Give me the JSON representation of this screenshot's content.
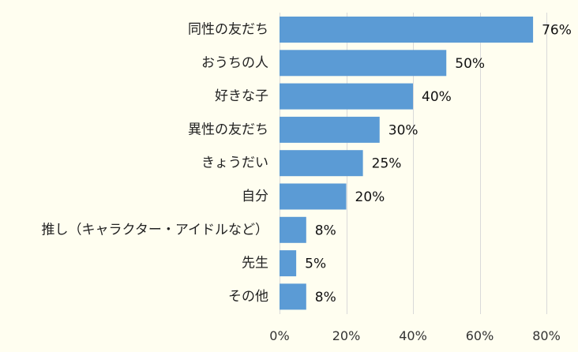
{
  "chart_data": {
    "type": "bar",
    "orientation": "horizontal",
    "categories": [
      "同性の友だち",
      "おうちの人",
      "好きな子",
      "異性の友だち",
      "きょうだい",
      "自分",
      "推し（キャラクター・アイドルなど）",
      "先生",
      "その他"
    ],
    "values": [
      76,
      50,
      40,
      30,
      25,
      20,
      8,
      5,
      8
    ],
    "value_labels": [
      "76%",
      "50%",
      "40%",
      "30%",
      "25%",
      "20%",
      "8%",
      "5%",
      "8%"
    ],
    "x_ticks": [
      0,
      20,
      40,
      60,
      80
    ],
    "x_tick_labels": [
      "0%",
      "20%",
      "40%",
      "60%",
      "80%"
    ],
    "xlim": [
      0,
      80
    ],
    "grid": "vertical",
    "legend": "none",
    "bar_color": "#5b9bd5",
    "grid_color": "#d9d9d9",
    "background_color": "#fffef0"
  }
}
